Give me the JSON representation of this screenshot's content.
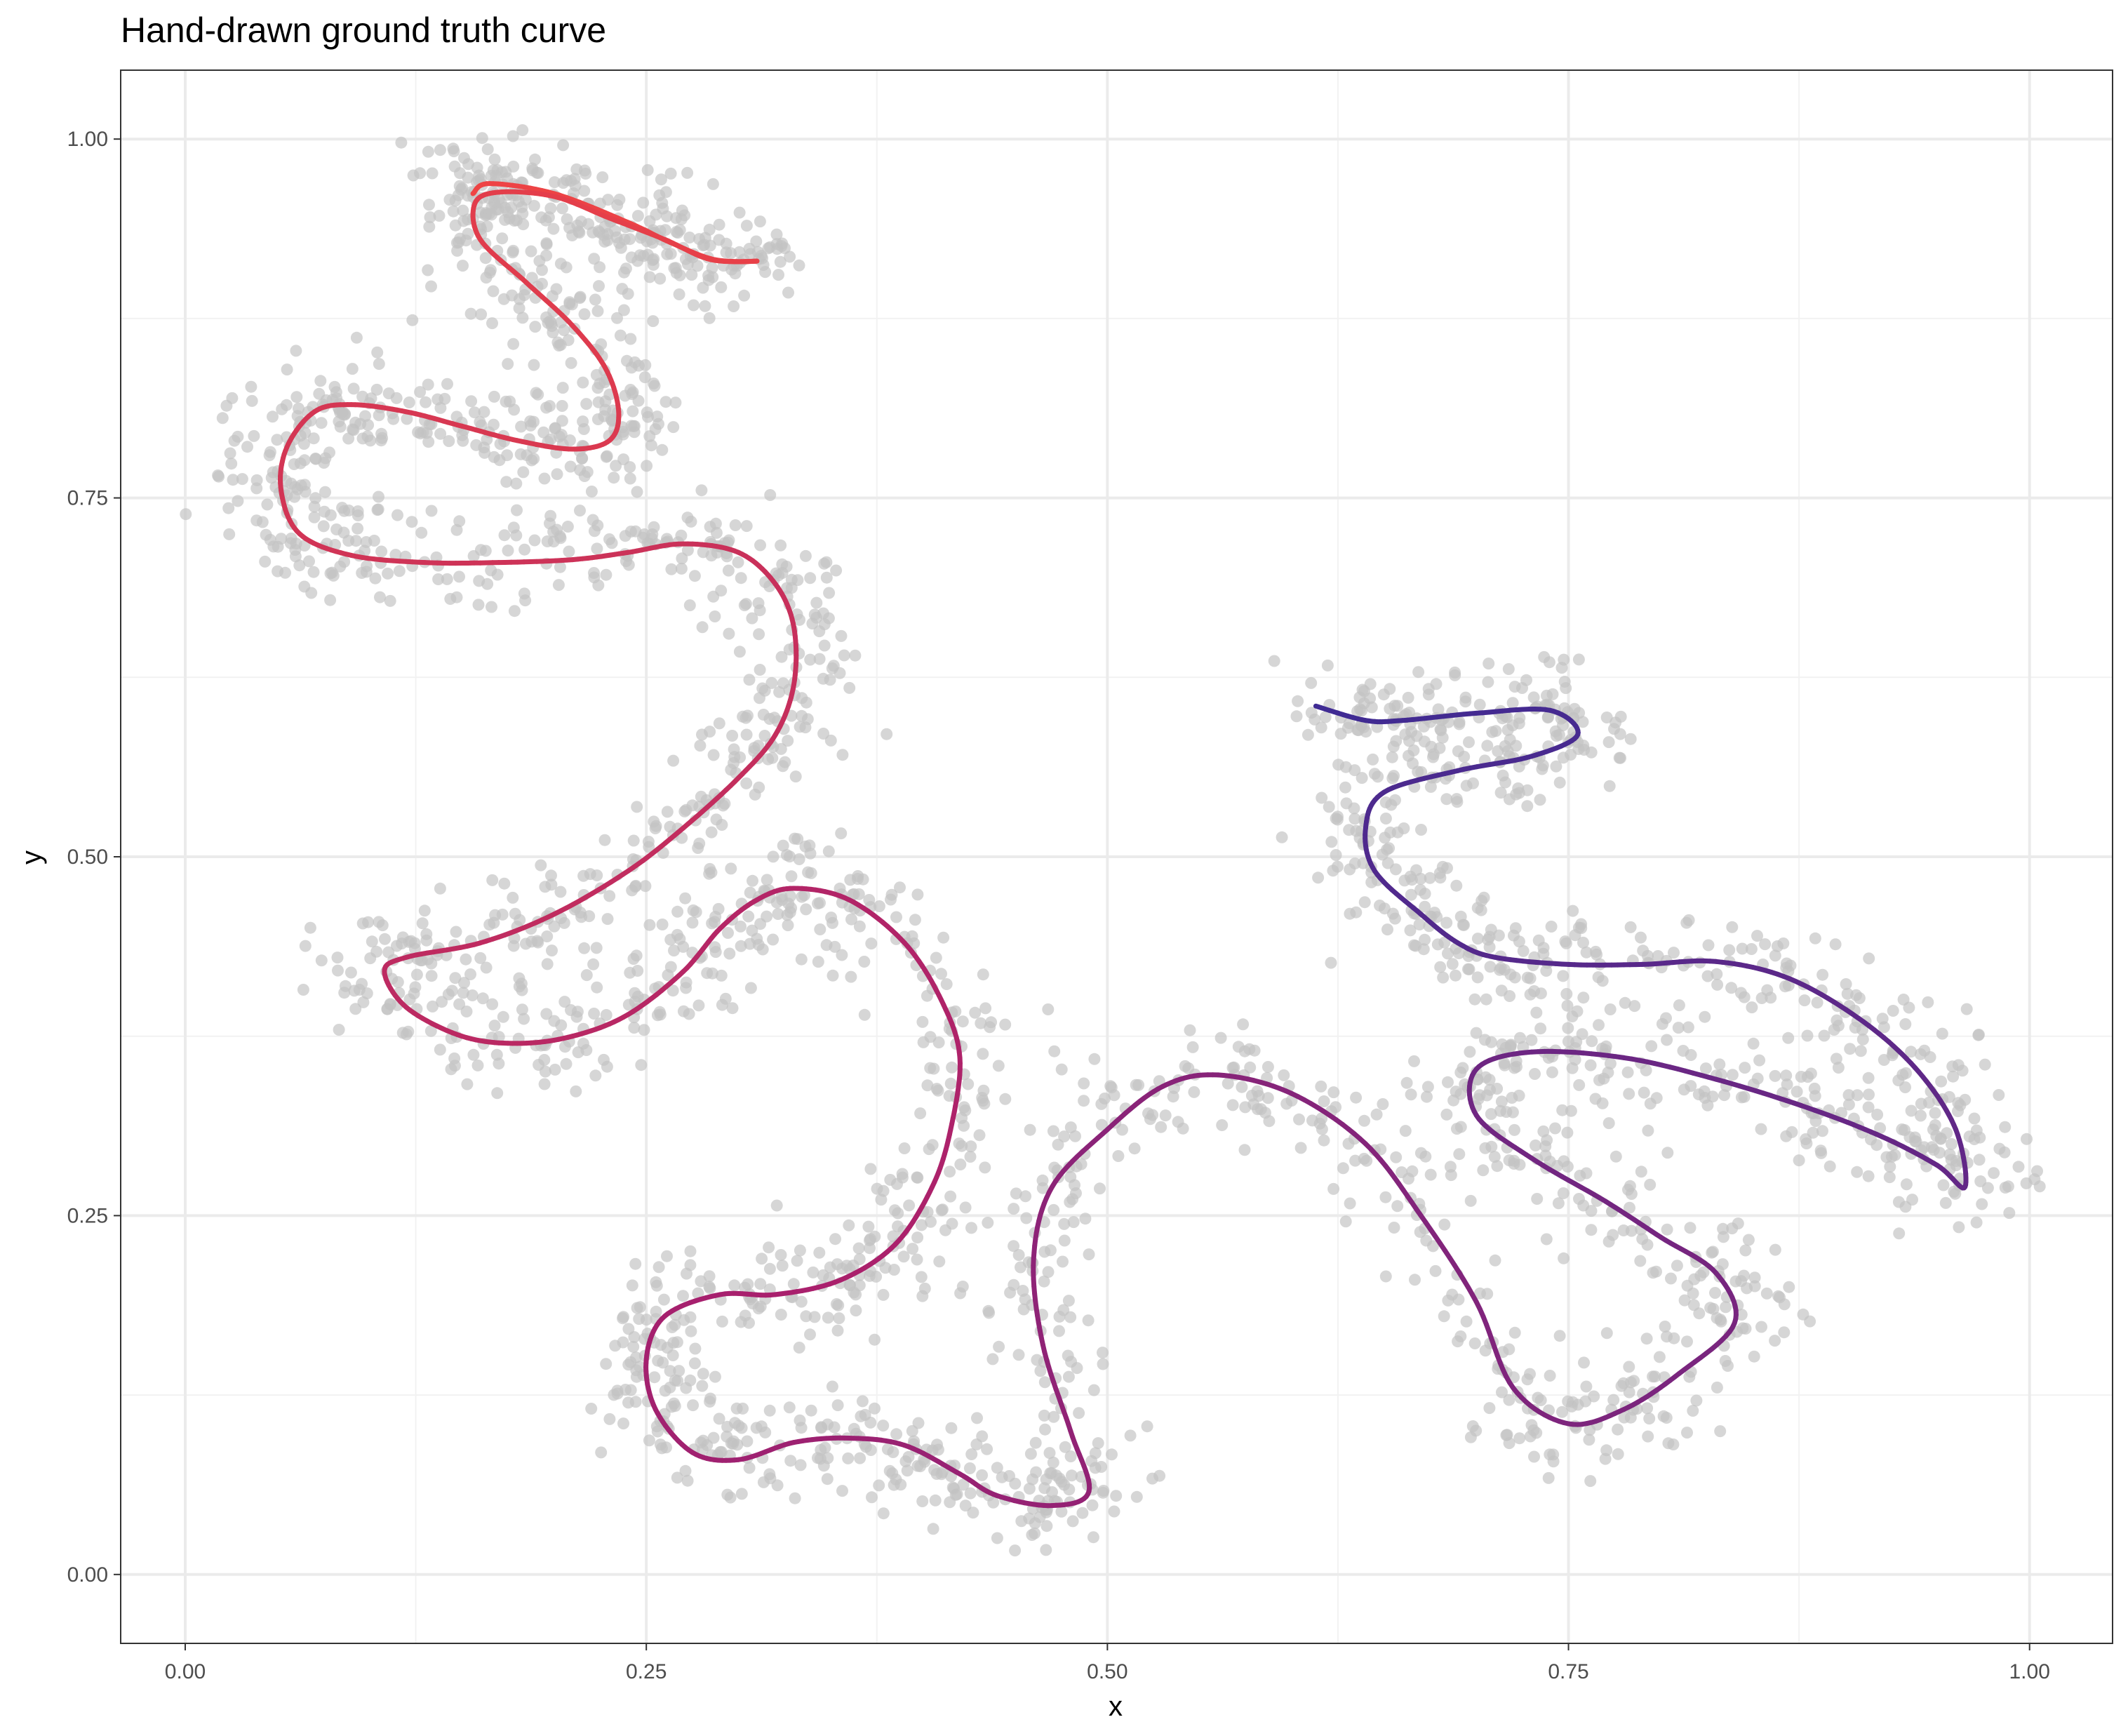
{
  "chart_data": {
    "type": "scatter",
    "title": "Hand-drawn ground truth curve",
    "xlabel": "x",
    "ylabel": "y",
    "xlim": [
      -0.035,
      1.045
    ],
    "ylim": [
      -0.048,
      1.048
    ],
    "x_ticks": [
      0,
      0.25,
      0.5,
      0.75,
      1
    ],
    "x_tick_labels": [
      "0.00",
      "0.25",
      "0.50",
      "0.75",
      "1.00"
    ],
    "y_ticks": [
      0,
      0.25,
      0.5,
      0.75,
      1
    ],
    "y_tick_labels": [
      "0.00",
      "0.25",
      "0.50",
      "0.75",
      "1.00"
    ],
    "grid": true,
    "legend": "none",
    "colors": {
      "points": "#c2c2c2",
      "curve_start": "#ef4444",
      "curve_mid": "#a9206d",
      "curve_end": "#3f2b93",
      "panel_border": "#333333",
      "grid_major": "#ebebeb",
      "grid_minor": "#f2f2f2"
    },
    "series": [
      {
        "kind": "curve",
        "points": [
          [
            0.156,
            0.962
          ],
          [
            0.165,
            0.969
          ],
          [
            0.2,
            0.962
          ],
          [
            0.24,
            0.942
          ],
          [
            0.263,
            0.928
          ],
          [
            0.287,
            0.916
          ],
          [
            0.31,
            0.915
          ],
          [
            0.285,
            0.916
          ],
          [
            0.26,
            0.93
          ],
          [
            0.23,
            0.945
          ],
          [
            0.2,
            0.96
          ],
          [
            0.17,
            0.963
          ],
          [
            0.157,
            0.955
          ],
          [
            0.16,
            0.93
          ],
          [
            0.185,
            0.9
          ],
          [
            0.21,
            0.87
          ],
          [
            0.228,
            0.84
          ],
          [
            0.235,
            0.81
          ],
          [
            0.23,
            0.79
          ],
          [
            0.21,
            0.784
          ],
          [
            0.18,
            0.79
          ],
          [
            0.15,
            0.8
          ],
          [
            0.12,
            0.81
          ],
          [
            0.09,
            0.815
          ],
          [
            0.07,
            0.81
          ],
          [
            0.055,
            0.785
          ],
          [
            0.052,
            0.755
          ],
          [
            0.062,
            0.725
          ],
          [
            0.09,
            0.71
          ],
          [
            0.13,
            0.705
          ],
          [
            0.17,
            0.705
          ],
          [
            0.21,
            0.707
          ],
          [
            0.24,
            0.712
          ],
          [
            0.27,
            0.718
          ],
          [
            0.3,
            0.712
          ],
          [
            0.32,
            0.69
          ],
          [
            0.33,
            0.66
          ],
          [
            0.33,
            0.62
          ],
          [
            0.32,
            0.585
          ],
          [
            0.3,
            0.555
          ],
          [
            0.27,
            0.52
          ],
          [
            0.24,
            0.49
          ],
          [
            0.2,
            0.46
          ],
          [
            0.16,
            0.44
          ],
          [
            0.12,
            0.43
          ],
          [
            0.108,
            0.42
          ],
          [
            0.12,
            0.395
          ],
          [
            0.15,
            0.375
          ],
          [
            0.18,
            0.37
          ],
          [
            0.21,
            0.375
          ],
          [
            0.24,
            0.39
          ],
          [
            0.27,
            0.42
          ],
          [
            0.29,
            0.45
          ],
          [
            0.31,
            0.47
          ],
          [
            0.33,
            0.478
          ],
          [
            0.36,
            0.47
          ],
          [
            0.39,
            0.44
          ],
          [
            0.41,
            0.4
          ],
          [
            0.42,
            0.36
          ],
          [
            0.415,
            0.31
          ],
          [
            0.405,
            0.27
          ],
          [
            0.385,
            0.23
          ],
          [
            0.355,
            0.205
          ],
          [
            0.32,
            0.195
          ],
          [
            0.29,
            0.195
          ],
          [
            0.26,
            0.18
          ],
          [
            0.25,
            0.15
          ],
          [
            0.255,
            0.115
          ],
          [
            0.275,
            0.085
          ],
          [
            0.3,
            0.08
          ],
          [
            0.33,
            0.092
          ],
          [
            0.36,
            0.095
          ],
          [
            0.39,
            0.09
          ],
          [
            0.42,
            0.07
          ],
          [
            0.44,
            0.055
          ],
          [
            0.47,
            0.048
          ],
          [
            0.49,
            0.058
          ],
          [
            0.48,
            0.1
          ],
          [
            0.465,
            0.16
          ],
          [
            0.46,
            0.22
          ],
          [
            0.47,
            0.27
          ],
          [
            0.5,
            0.31
          ],
          [
            0.53,
            0.34
          ],
          [
            0.56,
            0.348
          ],
          [
            0.6,
            0.335
          ],
          [
            0.64,
            0.3
          ],
          [
            0.67,
            0.25
          ],
          [
            0.7,
            0.19
          ],
          [
            0.72,
            0.13
          ],
          [
            0.75,
            0.105
          ],
          [
            0.78,
            0.115
          ],
          [
            0.81,
            0.14
          ],
          [
            0.84,
            0.175
          ],
          [
            0.83,
            0.21
          ],
          [
            0.8,
            0.235
          ],
          [
            0.77,
            0.26
          ],
          [
            0.73,
            0.29
          ],
          [
            0.7,
            0.32
          ],
          [
            0.7,
            0.352
          ],
          [
            0.73,
            0.364
          ],
          [
            0.78,
            0.36
          ],
          [
            0.83,
            0.345
          ],
          [
            0.88,
            0.325
          ],
          [
            0.92,
            0.305
          ],
          [
            0.95,
            0.285
          ],
          [
            0.965,
            0.27
          ],
          [
            0.96,
            0.31
          ],
          [
            0.94,
            0.35
          ],
          [
            0.91,
            0.385
          ],
          [
            0.87,
            0.415
          ],
          [
            0.83,
            0.427
          ],
          [
            0.79,
            0.425
          ],
          [
            0.75,
            0.425
          ],
          [
            0.71,
            0.43
          ],
          [
            0.69,
            0.44
          ],
          [
            0.67,
            0.46
          ],
          [
            0.645,
            0.49
          ],
          [
            0.64,
            0.52
          ],
          [
            0.65,
            0.545
          ],
          [
            0.69,
            0.56
          ],
          [
            0.73,
            0.57
          ],
          [
            0.755,
            0.585
          ],
          [
            0.74,
            0.602
          ],
          [
            0.7,
            0.6
          ],
          [
            0.66,
            0.595
          ],
          [
            0.64,
            0.595
          ],
          [
            0.613,
            0.605
          ]
        ]
      },
      {
        "kind": "point-cloud",
        "description": "",
        "count": 3000
      }
    ]
  }
}
